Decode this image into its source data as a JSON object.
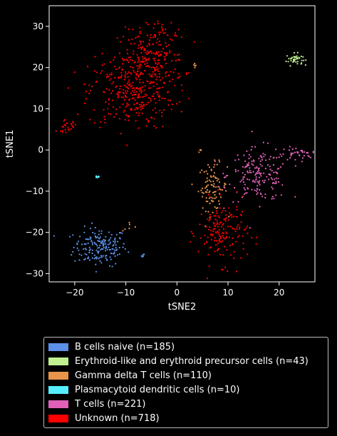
{
  "chart_data": {
    "type": "scatter",
    "xlabel": "tSNE2",
    "ylabel": "tSNE1",
    "xlim": [
      -25,
      27
    ],
    "ylim": [
      -32,
      35
    ],
    "xticks": [
      -20,
      -10,
      0,
      10,
      20
    ],
    "yticks": [
      -30,
      -20,
      -10,
      0,
      10,
      20,
      30
    ],
    "grid": false,
    "background": "#000000",
    "legend_placement": "below",
    "series": [
      {
        "name": "B cells naive (n=185)",
        "color": "#5b8fe8",
        "count": 185,
        "clusters": [
          {
            "cx": -15,
            "cy": -23.5,
            "sx": 2.6,
            "sy": 2.3,
            "n": 180
          },
          {
            "cx": -6.5,
            "cy": -25.5,
            "sx": 0.3,
            "sy": 0.2,
            "n": 5
          }
        ]
      },
      {
        "name": "Erythroid-like and erythroid precursor cells (n=43)",
        "color": "#c0f090",
        "count": 43,
        "clusters": [
          {
            "cx": 23,
            "cy": 22,
            "sx": 0.8,
            "sy": 0.7,
            "n": 43
          }
        ]
      },
      {
        "name": "Gamma delta T cells (n=110)",
        "color": "#e8944a",
        "count": 110,
        "clusters": [
          {
            "cx": 7,
            "cy": -9,
            "sx": 1.4,
            "sy": 2.8,
            "n": 95
          },
          {
            "cx": 3.5,
            "cy": 20,
            "sx": 0.3,
            "sy": 0.6,
            "n": 5
          },
          {
            "cx": -9,
            "cy": -18.5,
            "sx": 0.8,
            "sy": 0.6,
            "n": 6
          },
          {
            "cx": 4.5,
            "cy": -0.5,
            "sx": 0.2,
            "sy": 0.5,
            "n": 4
          }
        ]
      },
      {
        "name": "Plasmacytoid dendritic cells (n=10)",
        "color": "#55eeff",
        "count": 10,
        "clusters": [
          {
            "cx": -15.5,
            "cy": -6.5,
            "sx": 0.2,
            "sy": 0.2,
            "n": 10
          }
        ]
      },
      {
        "name": "T cells (n=221)",
        "color": "#e060b8",
        "count": 221,
        "clusters": [
          {
            "cx": 16,
            "cy": -6,
            "sx": 3.0,
            "sy": 3.2,
            "n": 185
          },
          {
            "cx": 23.5,
            "cy": -1,
            "sx": 1.6,
            "sy": 0.8,
            "n": 36
          }
        ]
      },
      {
        "name": "Unknown (n=718)",
        "color": "#ff0000",
        "count": 718,
        "clusters": [
          {
            "cx": -9,
            "cy": 14,
            "sx": 4.2,
            "sy": 4.5,
            "n": 300
          },
          {
            "cx": -5,
            "cy": 22,
            "sx": 3.2,
            "sy": 3.5,
            "n": 200
          },
          {
            "cx": -3,
            "cy": 29,
            "sx": 1.5,
            "sy": 1.5,
            "n": 25
          },
          {
            "cx": -21.5,
            "cy": 5.8,
            "sx": 1.0,
            "sy": 0.7,
            "n": 25
          },
          {
            "cx": 9,
            "cy": -20,
            "sx": 2.4,
            "sy": 3.8,
            "n": 165
          },
          {
            "cx": 1,
            "cy": 10,
            "sx": 1.5,
            "sy": 2.5,
            "n": 3
          }
        ]
      }
    ]
  }
}
